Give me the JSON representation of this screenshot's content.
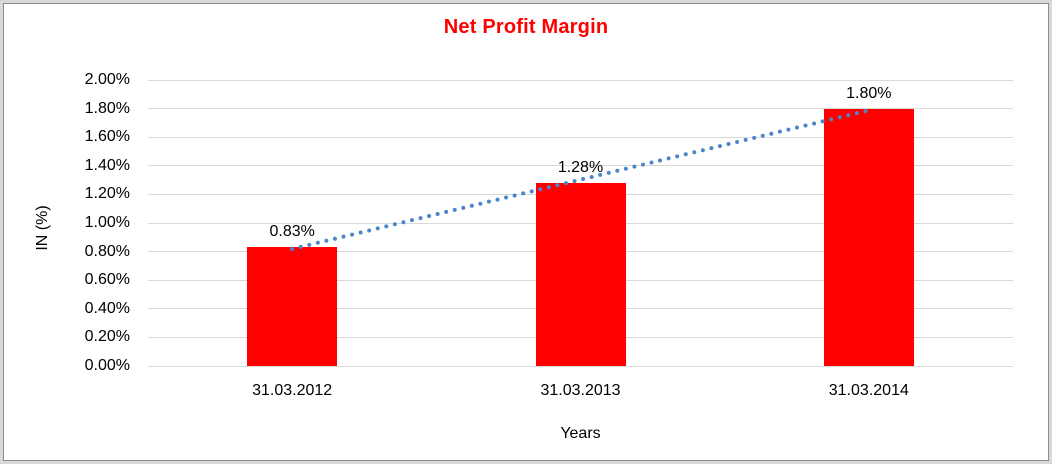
{
  "chart_data": {
    "type": "bar",
    "title": "Net Profit Margin",
    "title_color": "#FF0000",
    "categories": [
      "31.03.2012",
      "31.03.2013",
      "31.03.2014"
    ],
    "values": [
      0.83,
      1.28,
      1.8
    ],
    "data_labels": [
      "0.83%",
      "1.28%",
      "1.80%"
    ],
    "xlabel": "Years",
    "ylabel": "IN (%)",
    "ylim": [
      0,
      2.0
    ],
    "ytick_step": 0.2,
    "ytick_labels": [
      "0.00%",
      "0.20%",
      "0.40%",
      "0.60%",
      "0.80%",
      "1.00%",
      "1.20%",
      "1.40%",
      "1.60%",
      "1.80%",
      "2.00%"
    ],
    "bar_color": "#FF0000",
    "gridline_color": "#D9D9D9",
    "grid": true,
    "legend": "none",
    "trendline": {
      "type": "linear",
      "style": "dotted",
      "color": "#4A86C8"
    }
  }
}
